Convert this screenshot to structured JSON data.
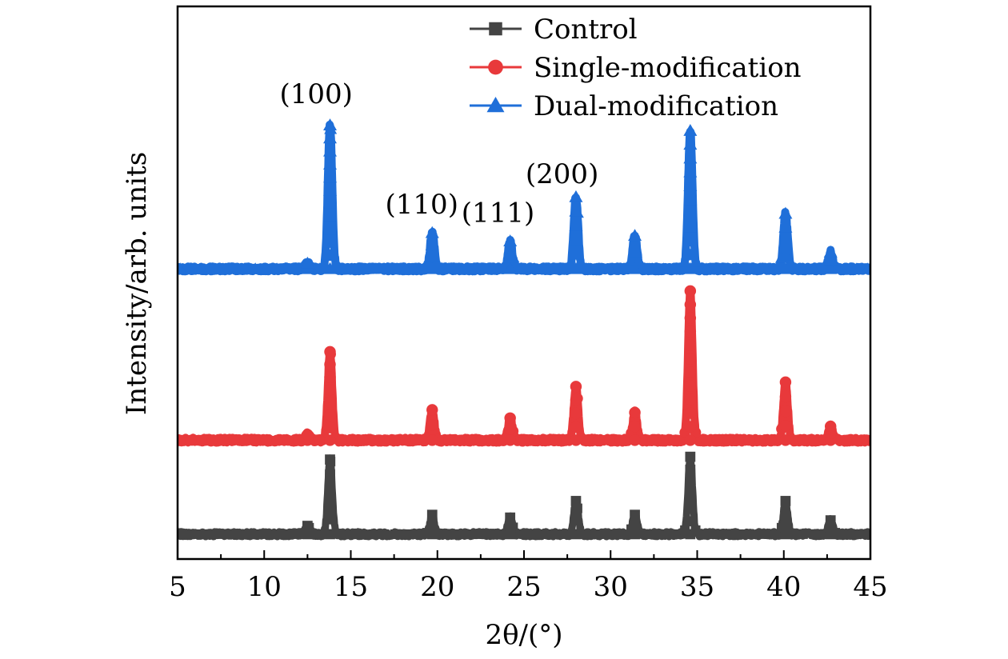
{
  "chart_data": {
    "type": "line",
    "title": "",
    "xlabel": "2θ/(°)",
    "ylabel": "Intensity/arb. units",
    "xlim": [
      5,
      45
    ],
    "ylim": [
      0,
      100
    ],
    "x_ticks": [
      5,
      10,
      15,
      20,
      25,
      30,
      35,
      40,
      45
    ],
    "x_tick_labels": [
      "5",
      "10",
      "15",
      "20",
      "25",
      "30",
      "35",
      "40",
      "45"
    ],
    "legend_position": "top-right",
    "y_ticks_visible": false,
    "series": [
      {
        "name": "Control",
        "color": "#444444",
        "marker": "square",
        "baseline": 4.5,
        "peaks": [
          {
            "x": 12.5,
            "height": 1.5
          },
          {
            "x": 13.8,
            "height": 13.5
          },
          {
            "x": 19.7,
            "height": 3.5
          },
          {
            "x": 24.2,
            "height": 3.0
          },
          {
            "x": 28.0,
            "height": 6.0
          },
          {
            "x": 31.4,
            "height": 3.5
          },
          {
            "x": 34.6,
            "height": 14.0
          },
          {
            "x": 40.1,
            "height": 6.0
          },
          {
            "x": 42.7,
            "height": 2.5
          }
        ]
      },
      {
        "name": "Single-modification",
        "color": "#e8393b",
        "marker": "circle",
        "baseline": 21.5,
        "peaks": [
          {
            "x": 12.5,
            "height": 1.0
          },
          {
            "x": 13.8,
            "height": 16.0
          },
          {
            "x": 19.7,
            "height": 5.5
          },
          {
            "x": 24.2,
            "height": 4.0
          },
          {
            "x": 28.0,
            "height": 9.7
          },
          {
            "x": 31.4,
            "height": 5.0
          },
          {
            "x": 34.6,
            "height": 27.0
          },
          {
            "x": 40.1,
            "height": 10.5
          },
          {
            "x": 42.7,
            "height": 2.5
          }
        ]
      },
      {
        "name": "Dual-modification",
        "color": "#1f6fd9",
        "marker": "triangle",
        "baseline": 52.5,
        "peaks": [
          {
            "x": 12.5,
            "height": 1.0
          },
          {
            "x": 13.8,
            "height": 26.0
          },
          {
            "x": 19.7,
            "height": 6.5
          },
          {
            "x": 24.2,
            "height": 5.0
          },
          {
            "x": 28.0,
            "height": 13.0
          },
          {
            "x": 31.4,
            "height": 6.0
          },
          {
            "x": 34.6,
            "height": 25.0
          },
          {
            "x": 40.1,
            "height": 10.0
          },
          {
            "x": 42.7,
            "height": 3.0
          }
        ]
      }
    ],
    "annotations": [
      {
        "text": "(100)",
        "x": 13.0,
        "y": 82.5
      },
      {
        "text": "(110)",
        "x": 19.1,
        "y": 62.5
      },
      {
        "text": "(111)",
        "x": 23.5,
        "y": 61.0
      },
      {
        "text": "(200)",
        "x": 27.2,
        "y": 68.0
      }
    ]
  }
}
